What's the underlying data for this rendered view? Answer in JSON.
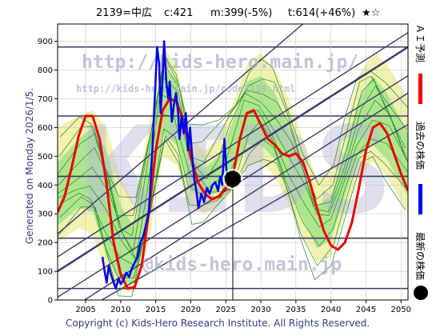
{
  "header": {
    "code_name": "2139=中広",
    "current": "c:421",
    "mid": "m:399(-5%)",
    "target": "t:614(+46%)",
    "stars": "★☆"
  },
  "legend": {
    "forecast": "ＡＩ予測",
    "past": "過去の株価",
    "latest": "最新の株価"
  },
  "generated": "Generated on Monday 2026/1/5.",
  "watermarks": {
    "big": "KIDS",
    "url_top": "http://kids-hero.main.jp/",
    "url_mid": "http://kids-hero.main.jp/code2139.html",
    "url_bottom": "@kids-hero.main.jp"
  },
  "copyright": "Copyright (c) Kids-Hero Research Institute. All Rights Reserved.",
  "colors": {
    "forecast": "#ee0000",
    "past": "#0000ee",
    "latest": "#000000",
    "band_outer": "#f2f2b0",
    "band_inner": "#aee68e",
    "thin_lines": "#228b22",
    "guide_lines": "#3a3a6a",
    "watermark": "#b9b9d9"
  },
  "chart_data": {
    "type": "line",
    "xlim": [
      2001,
      2051
    ],
    "ylim": [
      0,
      960
    ],
    "x_ticks": [
      2005,
      2010,
      2015,
      2020,
      2025,
      2030,
      2035,
      2040,
      2045,
      2050
    ],
    "y_ticks": [
      0,
      100,
      200,
      300,
      400,
      500,
      600,
      700,
      800,
      900
    ],
    "horizontal_levels": [
      40,
      215,
      430,
      640,
      880
    ],
    "trend_lines": [
      {
        "x1": 2001,
        "y1": 100,
        "x2": 2051,
        "y2": 880
      },
      {
        "x1": 2001,
        "y1": 150,
        "x2": 2051,
        "y2": 930
      },
      {
        "x1": 2001,
        "y1": 230,
        "x2": 2036,
        "y2": 960
      },
      {
        "x1": 2001,
        "y1": 10,
        "x2": 2051,
        "y2": 780
      },
      {
        "x1": 2001,
        "y1": -60,
        "x2": 2051,
        "y2": 720
      },
      {
        "x1": 2003,
        "y1": -60,
        "x2": 2051,
        "y2": 610
      }
    ],
    "band_outer": {
      "x": [
        2001,
        2004,
        2006,
        2008,
        2010,
        2012,
        2014,
        2016,
        2018,
        2020,
        2022,
        2024,
        2026,
        2028,
        2030,
        2032,
        2034,
        2036,
        2038,
        2040,
        2042,
        2044,
        2046,
        2048,
        2051
      ],
      "upper": [
        600,
        640,
        660,
        600,
        420,
        330,
        600,
        880,
        820,
        560,
        520,
        560,
        680,
        820,
        860,
        800,
        700,
        560,
        420,
        450,
        600,
        780,
        860,
        820,
        700
      ],
      "lower": [
        200,
        250,
        230,
        80,
        30,
        30,
        200,
        500,
        470,
        320,
        300,
        330,
        380,
        470,
        480,
        430,
        330,
        220,
        130,
        150,
        300,
        430,
        480,
        430,
        300
      ]
    },
    "band_inner": {
      "x": [
        2001,
        2004,
        2006,
        2008,
        2010,
        2012,
        2014,
        2016,
        2018,
        2020,
        2022,
        2024,
        2026,
        2028,
        2030,
        2032,
        2034,
        2036,
        2038,
        2040,
        2042,
        2044,
        2046,
        2048,
        2051
      ],
      "upper": [
        480,
        560,
        600,
        520,
        330,
        250,
        520,
        820,
        760,
        500,
        460,
        500,
        620,
        760,
        780,
        720,
        600,
        460,
        330,
        360,
        520,
        700,
        780,
        720,
        580
      ],
      "lower": [
        260,
        320,
        310,
        150,
        60,
        60,
        280,
        580,
        540,
        380,
        350,
        380,
        440,
        540,
        540,
        490,
        390,
        280,
        180,
        210,
        360,
        500,
        540,
        490,
        360
      ]
    },
    "series": [
      {
        "name": "ＡＩ予測",
        "x": [
          2001,
          2002,
          2003,
          2004,
          2005,
          2006,
          2007,
          2008,
          2009,
          2010,
          2011,
          2012,
          2013,
          2014,
          2015,
          2016,
          2017,
          2018,
          2019,
          2020,
          2021,
          2022,
          2023,
          2024,
          2025,
          2026,
          2027,
          2028,
          2029,
          2030,
          2031,
          2032,
          2033,
          2034,
          2035,
          2036,
          2037,
          2038,
          2039,
          2040,
          2041,
          2042,
          2043,
          2044,
          2045,
          2046,
          2047,
          2048,
          2049,
          2050,
          2051
        ],
        "y": [
          305,
          360,
          460,
          570,
          640,
          640,
          560,
          400,
          200,
          90,
          40,
          45,
          120,
          300,
          520,
          660,
          700,
          690,
          620,
          500,
          410,
          370,
          350,
          360,
          390,
          430,
          560,
          650,
          660,
          610,
          560,
          540,
          510,
          500,
          510,
          480,
          410,
          320,
          240,
          190,
          175,
          200,
          270,
          390,
          520,
          600,
          615,
          580,
          510,
          440,
          380
        ]
      },
      {
        "name": "過去の株価",
        "x": [
          2007.4,
          2007.7,
          2008.0,
          2008.3,
          2008.6,
          2009.0,
          2009.3,
          2009.7,
          2010.0,
          2010.4,
          2010.8,
          2011.2,
          2011.6,
          2012.0,
          2012.4,
          2012.8,
          2013.2,
          2013.6,
          2014.0,
          2014.3,
          2014.6,
          2014.9,
          2015.2,
          2015.5,
          2015.7,
          2016.0,
          2016.2,
          2016.5,
          2016.8,
          2017.0,
          2017.3,
          2017.6,
          2017.9,
          2018.2,
          2018.4,
          2018.7,
          2019.0,
          2019.3,
          2019.6,
          2019.9,
          2020.2,
          2020.5,
          2020.8,
          2021.1,
          2021.5,
          2021.9,
          2022.3,
          2022.7,
          2023.1,
          2023.5,
          2023.9,
          2024.2,
          2024.5,
          2024.8,
          2025.1,
          2025.4
        ],
        "y": [
          150,
          100,
          60,
          120,
          90,
          60,
          40,
          75,
          55,
          70,
          95,
          80,
          110,
          130,
          150,
          200,
          220,
          260,
          300,
          420,
          560,
          720,
          880,
          820,
          650,
          780,
          900,
          760,
          700,
          760,
          620,
          680,
          720,
          650,
          560,
          640,
          580,
          650,
          520,
          600,
          500,
          420,
          380,
          320,
          370,
          340,
          390,
          370,
          400,
          410,
          380,
          430,
          400,
          560,
          450,
          420
        ]
      }
    ],
    "latest_point": {
      "x": 2026,
      "y": 421
    }
  }
}
